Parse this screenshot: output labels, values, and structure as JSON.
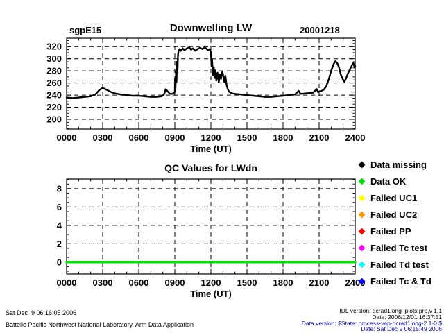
{
  "header": {
    "site": "sgpE15",
    "title": "Downwelling LW",
    "date": "20001218"
  },
  "chart_data": [
    {
      "type": "line",
      "title": "Downwelling LW",
      "xlabel": "Time (UT)",
      "ylabel": "",
      "xlim": [
        0,
        24
      ],
      "ylim": [
        184,
        334
      ],
      "xticks": [
        0,
        3,
        6,
        9,
        12,
        15,
        18,
        21,
        24
      ],
      "xtick_labels": [
        "0000",
        "0300",
        "0600",
        "0900",
        "1200",
        "1500",
        "1800",
        "2100",
        "2400"
      ],
      "yticks": [
        200,
        220,
        240,
        260,
        280,
        300,
        320
      ],
      "ytick_labels": [
        "200",
        "220",
        "240",
        "260",
        "280",
        "300",
        "320"
      ],
      "x_minor": 1,
      "y_minor": 5,
      "grid": "dashed",
      "series": [
        {
          "name": "LWdn",
          "color": "#000000",
          "width": 2.4,
          "points": [
            [
              0,
              236
            ],
            [
              0.5,
              235
            ],
            [
              1,
              236
            ],
            [
              1.5,
              237
            ],
            [
              2,
              238
            ],
            [
              2.4,
              241
            ],
            [
              2.7,
              248
            ],
            [
              3,
              252
            ],
            [
              3.3,
              249
            ],
            [
              3.7,
              245
            ],
            [
              4,
              243
            ],
            [
              4.5,
              241
            ],
            [
              5,
              240
            ],
            [
              5.5,
              239
            ],
            [
              6,
              239
            ],
            [
              6.5,
              238
            ],
            [
              7,
              237
            ],
            [
              7.5,
              237
            ],
            [
              7.9,
              238
            ],
            [
              8.1,
              241
            ],
            [
              8.25,
              250
            ],
            [
              8.4,
              246
            ],
            [
              8.6,
              242
            ],
            [
              8.8,
              242
            ],
            [
              9,
              245
            ],
            [
              9.02,
              268
            ],
            [
              9.06,
              252
            ],
            [
              9.1,
              280
            ],
            [
              9.14,
              262
            ],
            [
              9.18,
              295
            ],
            [
              9.22,
              278
            ],
            [
              9.26,
              305
            ],
            [
              9.3,
              312
            ],
            [
              9.4,
              316
            ],
            [
              9.5,
              313
            ],
            [
              9.65,
              317
            ],
            [
              9.8,
              314
            ],
            [
              10,
              317
            ],
            [
              10.2,
              319
            ],
            [
              10.35,
              315
            ],
            [
              10.5,
              317
            ],
            [
              10.7,
              313
            ],
            [
              10.9,
              316
            ],
            [
              11.1,
              318
            ],
            [
              11.3,
              316
            ],
            [
              11.45,
              319
            ],
            [
              11.6,
              317
            ],
            [
              11.75,
              314
            ],
            [
              11.9,
              316
            ],
            [
              12,
              311
            ],
            [
              12.05,
              288
            ],
            [
              12.1,
              299
            ],
            [
              12.17,
              273
            ],
            [
              12.24,
              286
            ],
            [
              12.3,
              268
            ],
            [
              12.38,
              281
            ],
            [
              12.45,
              264
            ],
            [
              12.55,
              277
            ],
            [
              12.65,
              261
            ],
            [
              12.75,
              274
            ],
            [
              12.85,
              267
            ],
            [
              12.95,
              279
            ],
            [
              13.05,
              270
            ],
            [
              13.12,
              261
            ],
            [
              13.2,
              272
            ],
            [
              13.3,
              257
            ],
            [
              13.4,
              250
            ],
            [
              13.5,
              246
            ],
            [
              13.7,
              243
            ],
            [
              14,
              242
            ],
            [
              14.5,
              241
            ],
            [
              15,
              240
            ],
            [
              15.5,
              239
            ],
            [
              16,
              238
            ],
            [
              16.5,
              237
            ],
            [
              17,
              237
            ],
            [
              17.5,
              238
            ],
            [
              18,
              239
            ],
            [
              18.5,
              240
            ],
            [
              19,
              241
            ],
            [
              19.3,
              247
            ],
            [
              19.45,
              242
            ],
            [
              20,
              243
            ],
            [
              20.5,
              244
            ],
            [
              20.8,
              250
            ],
            [
              20.9,
              245
            ],
            [
              21,
              246
            ],
            [
              21.2,
              247
            ],
            [
              21.4,
              249
            ],
            [
              21.6,
              255
            ],
            [
              21.8,
              266
            ],
            [
              22,
              280
            ],
            [
              22.2,
              291
            ],
            [
              22.35,
              296
            ],
            [
              22.5,
              293
            ],
            [
              22.65,
              286
            ],
            [
              22.8,
              274
            ],
            [
              23,
              265
            ],
            [
              23.1,
              262
            ],
            [
              23.25,
              268
            ],
            [
              23.4,
              276
            ],
            [
              23.6,
              284
            ],
            [
              23.75,
              290
            ],
            [
              23.85,
              293
            ],
            [
              23.95,
              286
            ],
            [
              24,
              288
            ]
          ]
        }
      ]
    },
    {
      "type": "line",
      "title": "QC Values for LWdn",
      "xlabel": "Time (UT)",
      "ylabel": "",
      "xlim": [
        0,
        24
      ],
      "ylim": [
        -1.3,
        9.05
      ],
      "xticks": [
        0,
        3,
        6,
        9,
        12,
        15,
        18,
        21,
        24
      ],
      "xtick_labels": [
        "0000",
        "0300",
        "0600",
        "0900",
        "1200",
        "1500",
        "1800",
        "2100",
        "2400"
      ],
      "yticks": [
        0,
        2,
        4,
        6,
        8
      ],
      "ytick_labels": [
        "0",
        "2",
        "4",
        "6",
        "8"
      ],
      "x_minor": 1,
      "y_minor": 0.5,
      "grid": "dashed",
      "series": [
        {
          "name": "QC flag",
          "color": "#00e600",
          "width": 3.5,
          "points": [
            [
              0,
              0
            ],
            [
              24,
              0
            ]
          ]
        }
      ]
    }
  ],
  "legend": {
    "position": "right",
    "items": [
      {
        "label": "Data missing",
        "color": "#000000"
      },
      {
        "label": "Data OK",
        "color": "#00dd00"
      },
      {
        "label": "Failed UC1",
        "color": "#ffff00"
      },
      {
        "label": "Failed UC2",
        "color": "#ff9900"
      },
      {
        "label": "Failed PP",
        "color": "#ff0000"
      },
      {
        "label": "Failed Tc test",
        "color": "#ff00ff"
      },
      {
        "label": "Failed Td test",
        "color": "#00ffff"
      },
      {
        "label": "Failed Tc & Td",
        "color": "#0000ff"
      }
    ]
  },
  "footer": {
    "left_lines": [
      "Sat Dec  9 06:16:05 2006",
      "Battelle Pacific Northwest National Laboratory, Arm Data Application"
    ],
    "right_lines": [
      {
        "text": "IDL version: qcrad1long_plots.pro,v 1.1",
        "color": "#000000"
      },
      {
        "text": "Date: 2006/12/01 16:37:51",
        "color": "#000000"
      },
      {
        "text": "Data version: $State: process-vap-qcrad1long-2.1-0 $",
        "color": "#0000bb"
      },
      {
        "text": "Date: Sat Dec  9 06:15:49 2006",
        "color": "#0000bb"
      }
    ]
  }
}
